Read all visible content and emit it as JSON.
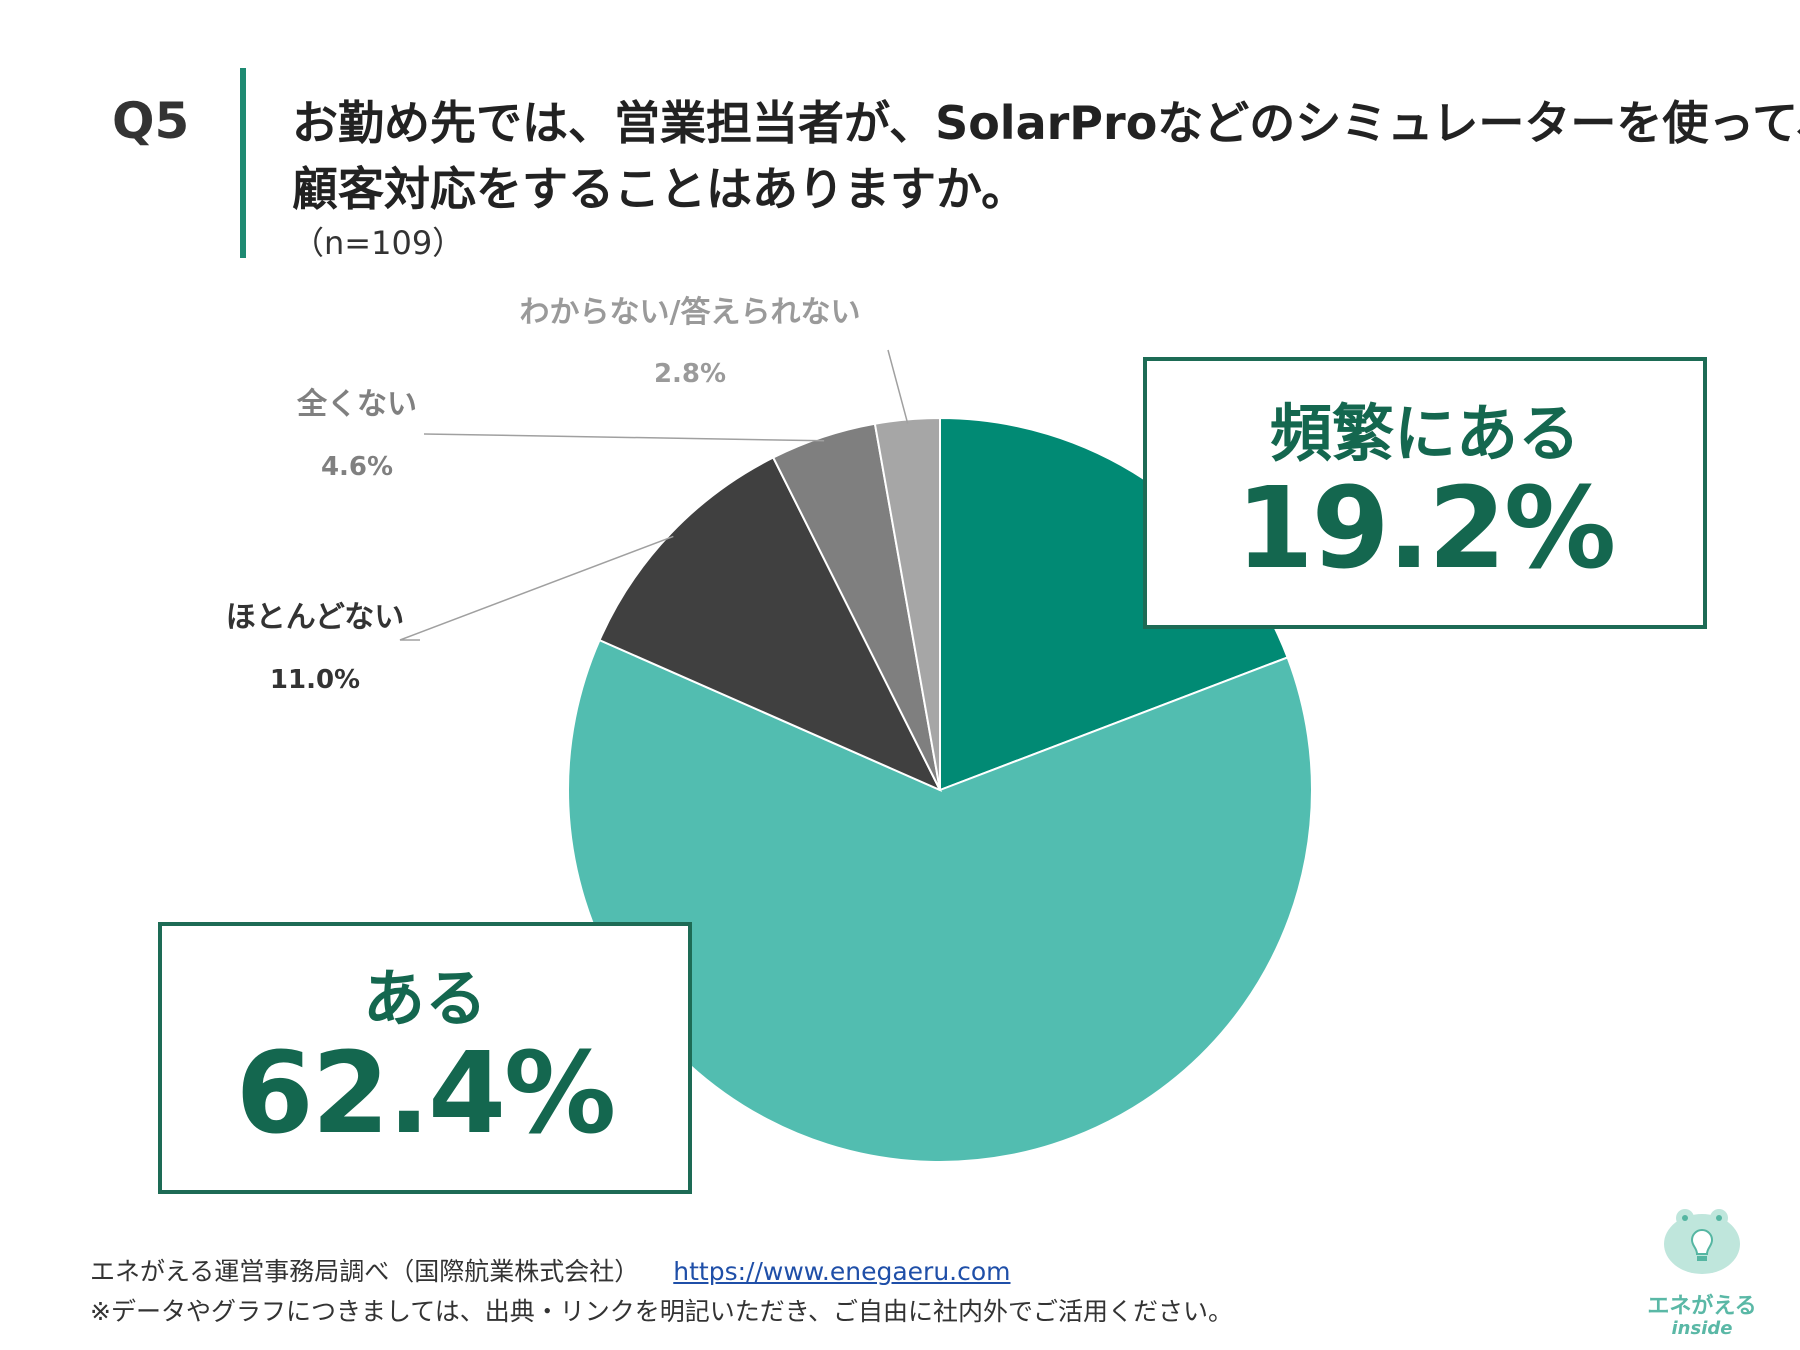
{
  "header": {
    "question_number": "Q5",
    "title_line1": "お勤め先では、営業担当者が、SolarProなどのシミュレーターを使って、",
    "title_line2": "顧客対応をすることはありますか。",
    "sample_size": "（n=109）"
  },
  "chart_data": {
    "type": "pie",
    "title": "お勤め先では、営業担当者が、SolarProなどのシミュレーターを使って、顧客対応をすることはありますか。",
    "start": "12 o'clock, clockwise",
    "slices": [
      {
        "label": "頻繁にある",
        "value": 19.2,
        "display": "19.2%",
        "color": "#018a74"
      },
      {
        "label": "ある",
        "value": 62.4,
        "display": "62.4%",
        "color": "#52bdb0"
      },
      {
        "label": "ほとんどない",
        "value": 11.0,
        "display": "11.0%",
        "color": "#404040"
      },
      {
        "label": "全くない",
        "value": 4.6,
        "display": "4.6%",
        "color": "#7f7f7f"
      },
      {
        "label": "わからない/答えられない",
        "value": 2.8,
        "display": "2.8%",
        "color": "#a6a6a6"
      }
    ]
  },
  "callouts": {
    "frequent": {
      "label": "頻繁にある",
      "value": "19.2%"
    },
    "aru": {
      "label": "ある",
      "value": "62.4%"
    }
  },
  "footer": {
    "source": "エネがえる運営事務局調べ（国際航業株式会社）",
    "url": "https://www.enegaeru.com",
    "note": "※データやグラフにつきましては、出典・リンクを明記いただき、ご自由に社内外でご活用ください。"
  },
  "logo": {
    "brand": "エネがえる",
    "sub": "inside"
  },
  "colors": {
    "accent": "#1d6b55",
    "bar": "#1e8a72"
  }
}
